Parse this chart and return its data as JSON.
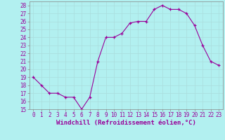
{
  "x": [
    0,
    1,
    2,
    3,
    4,
    5,
    6,
    7,
    8,
    9,
    10,
    11,
    12,
    13,
    14,
    15,
    16,
    17,
    18,
    19,
    20,
    21,
    22,
    23
  ],
  "y": [
    19,
    18,
    17,
    17,
    16.5,
    16.5,
    15,
    16.5,
    21,
    24,
    24,
    24.5,
    25.8,
    26,
    26,
    27.5,
    28,
    27.5,
    27.5,
    27,
    25.5,
    23,
    21,
    20.5
  ],
  "line_color": "#990099",
  "marker_color": "#990099",
  "bg_color": "#b2f0f0",
  "grid_color": "#aadddd",
  "xlabel": "Windchill (Refroidissement éolien,°C)",
  "ylim": [
    15,
    28.5
  ],
  "yticks": [
    15,
    16,
    17,
    18,
    19,
    20,
    21,
    22,
    23,
    24,
    25,
    26,
    27,
    28
  ],
  "xticks": [
    0,
    1,
    2,
    3,
    4,
    5,
    6,
    7,
    8,
    9,
    10,
    11,
    12,
    13,
    14,
    15,
    16,
    17,
    18,
    19,
    20,
    21,
    22,
    23
  ],
  "label_fontsize": 6.5,
  "tick_fontsize": 5.5
}
